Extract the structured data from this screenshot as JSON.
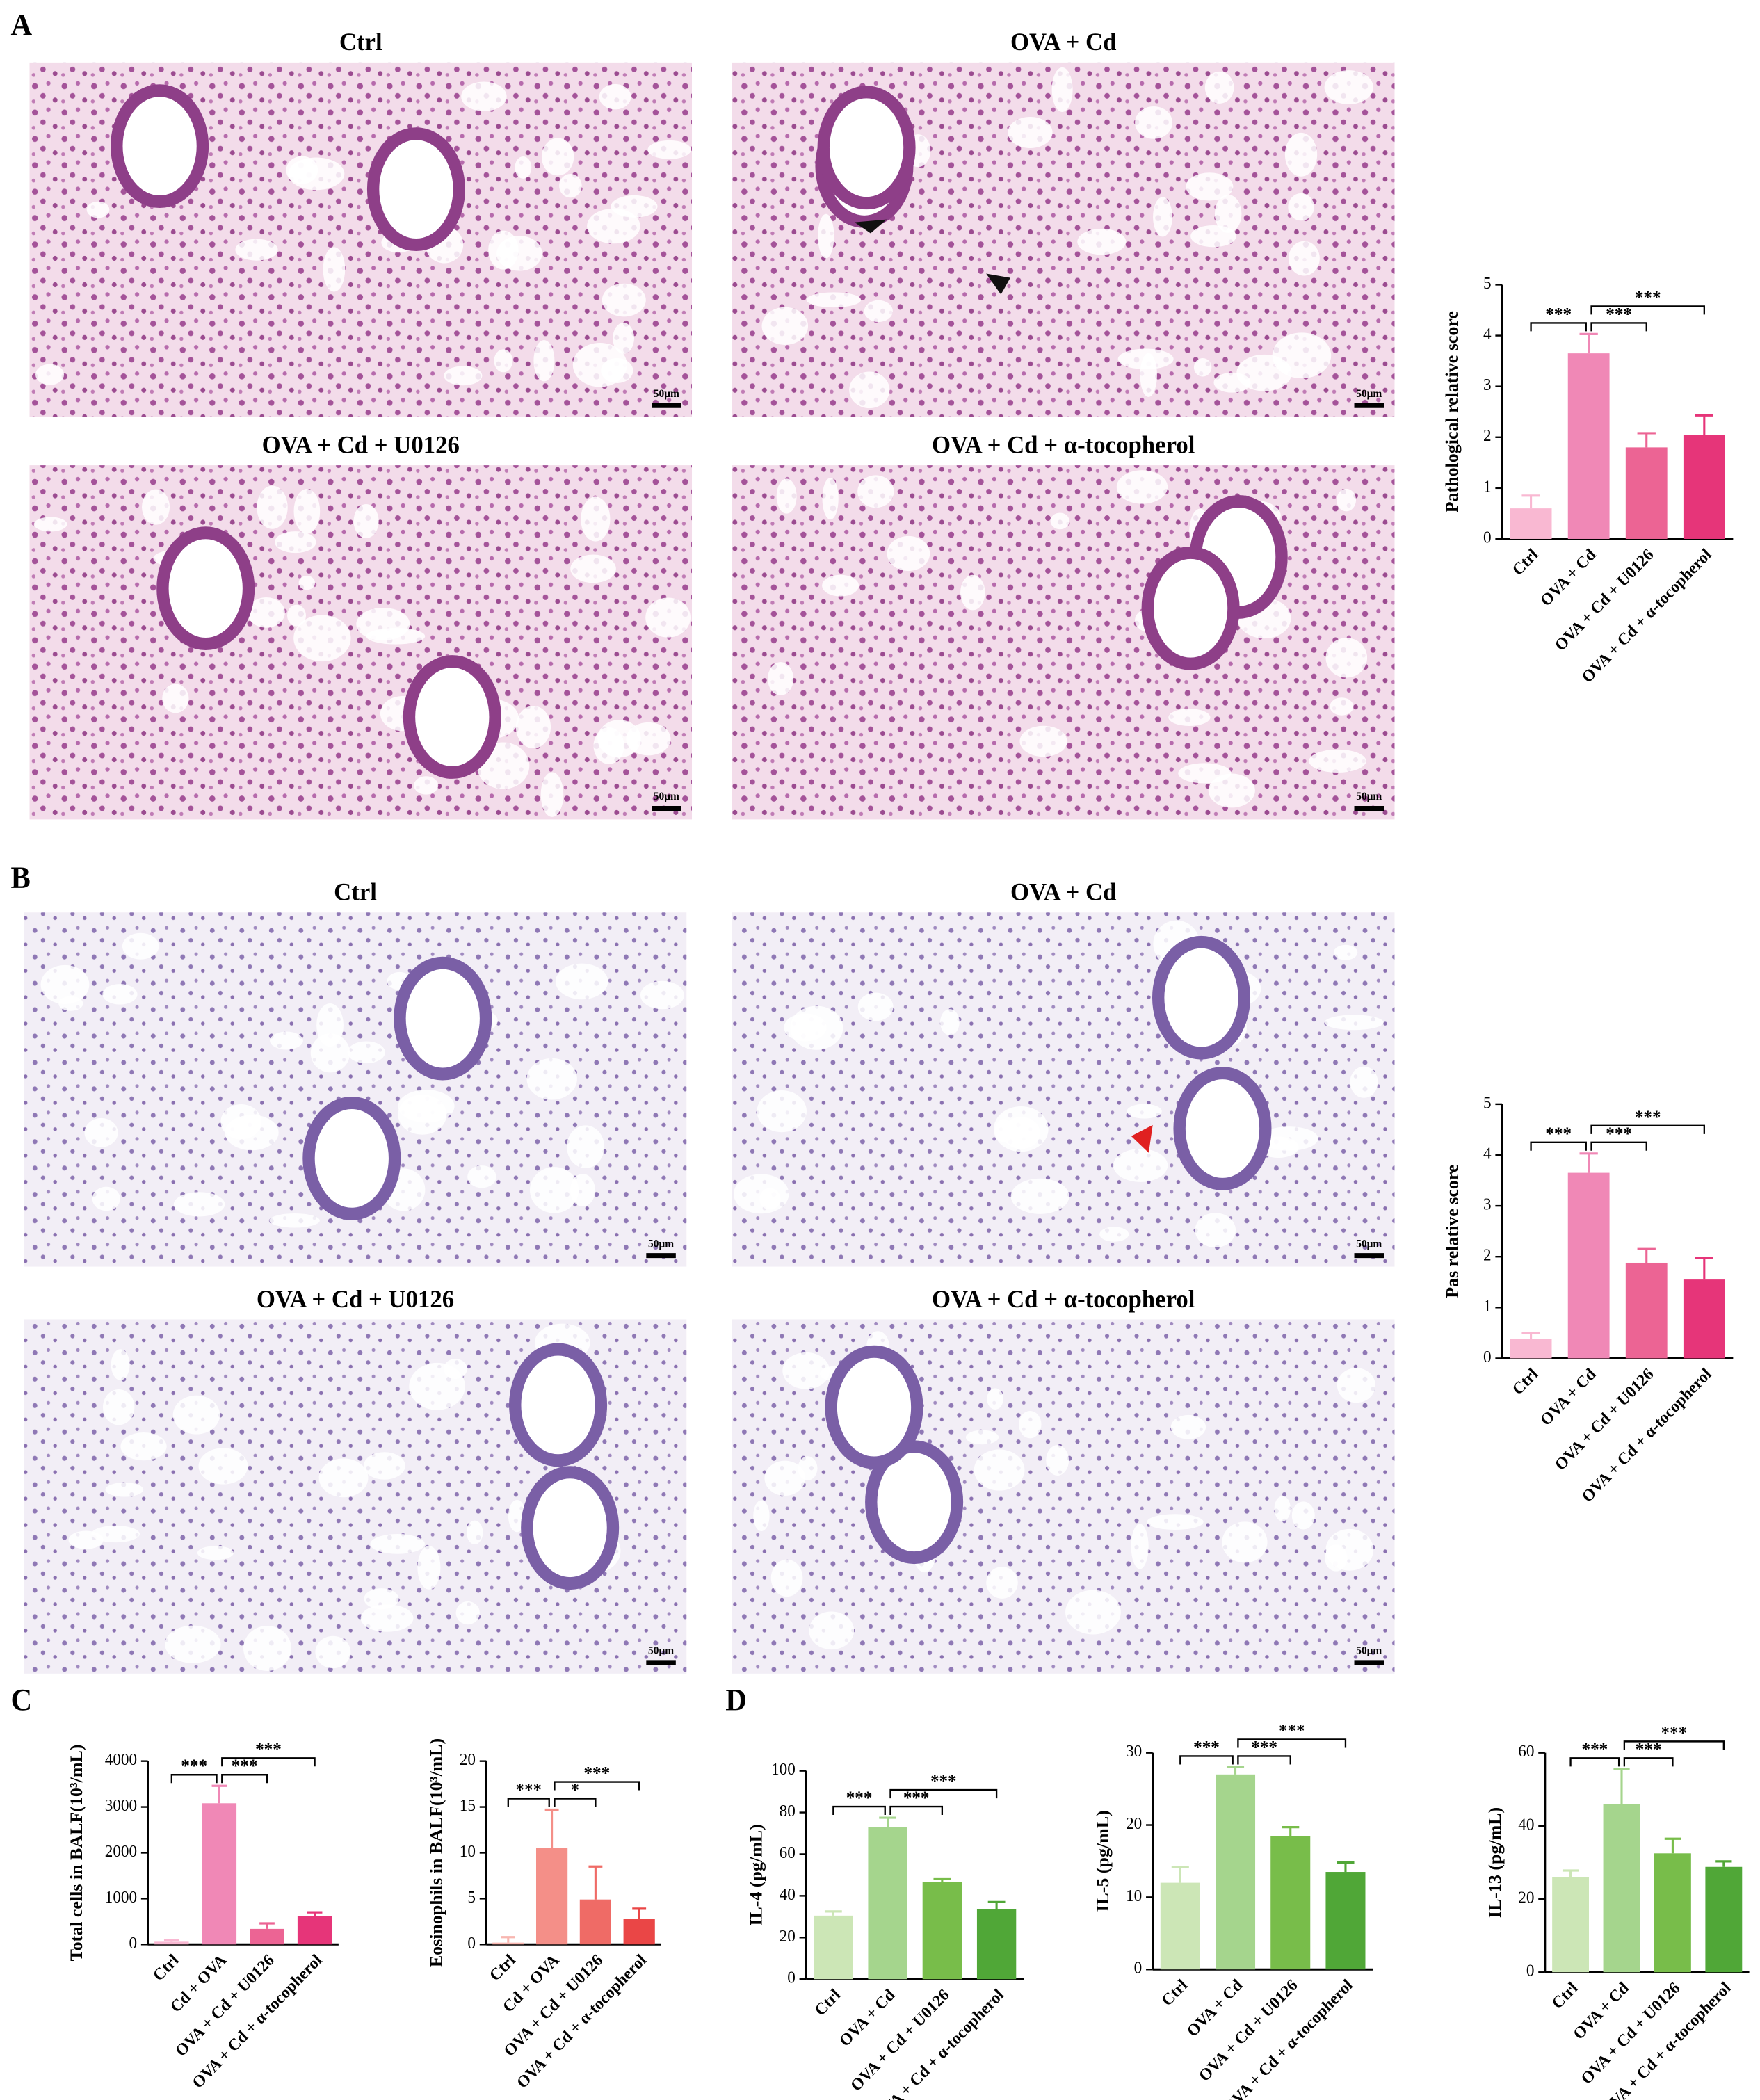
{
  "panel_labels": [
    "A",
    "B",
    "C",
    "D"
  ],
  "micrograph_panels": [
    {
      "titles": [
        "Ctrl",
        "OVA + Cd",
        "OVA + Cd + U0126",
        "OVA + Cd + α-tocopherol"
      ],
      "scale_bars": [
        "50μm",
        "50μm",
        "50μm",
        "50μm"
      ]
    },
    {
      "titles": [
        "Ctrl",
        "OVA + Cd",
        "OVA + Cd + U0126",
        "OVA + Cd + α-tocopherol"
      ],
      "scale_bars": [
        "50μm",
        "50μm",
        "50μm",
        "50μm"
      ]
    }
  ],
  "chart_data": [
    {
      "type": "bar",
      "ylabel": "Pathological relative score",
      "categories": [
        "Ctrl",
        "OVA + Cd",
        "OVA + Cd + U0126",
        "OVA + Cd + α-tocopherol"
      ],
      "values": [
        0.6,
        3.65,
        1.8,
        2.05
      ],
      "errors": [
        0.25,
        0.38,
        0.28,
        0.38
      ],
      "colors": [
        "#f9b8d2",
        "#f088b6",
        "#ec6494",
        "#e63579"
      ],
      "ylim": [
        0,
        5
      ],
      "yticks": [
        0,
        1,
        2,
        3,
        4,
        5
      ],
      "significance": [
        "***",
        "***",
        "***"
      ]
    },
    {
      "type": "bar",
      "ylabel": "Pas relative score",
      "categories": [
        "Ctrl",
        "OVA + Cd",
        "OVA + Cd + U0126",
        "OVA + Cd + α-tocopherol"
      ],
      "values": [
        0.38,
        3.65,
        1.88,
        1.55
      ],
      "errors": [
        0.12,
        0.38,
        0.27,
        0.42
      ],
      "colors": [
        "#f9b8d2",
        "#f088b6",
        "#ec6494",
        "#e63579"
      ],
      "ylim": [
        0,
        5
      ],
      "yticks": [
        0,
        1,
        2,
        3,
        4,
        5
      ],
      "significance": [
        "***",
        "***",
        "***"
      ]
    },
    {
      "type": "bar",
      "ylabel": "Total cells in BALF(10³/mL)",
      "categories": [
        "Ctrl",
        "Cd + OVA",
        "OVA + Cd + U0126",
        "OVA + Cd + α-tocopherol"
      ],
      "values": [
        60,
        3080,
        340,
        620
      ],
      "errors": [
        30,
        380,
        120,
        80
      ],
      "colors": [
        "#f9b8d2",
        "#f088b6",
        "#ec6494",
        "#e63579"
      ],
      "ylim": [
        0,
        4000
      ],
      "yticks": [
        0,
        1000,
        2000,
        3000,
        4000
      ],
      "significance": [
        "***",
        "***",
        "***"
      ]
    },
    {
      "type": "bar",
      "ylabel": "Eosinophils in BALF(10³/mL)",
      "categories": [
        "Ctrl",
        "Cd + OVA",
        "OVA + Cd + U0126",
        "OVA + Cd + α-tocopherol"
      ],
      "values": [
        0.2,
        10.5,
        4.9,
        2.8
      ],
      "errors": [
        0.6,
        4.2,
        3.6,
        1.1
      ],
      "colors": [
        "#f8b6b0",
        "#f48f88",
        "#ef6b66",
        "#ea4646"
      ],
      "ylim": [
        0,
        20
      ],
      "yticks": [
        0,
        5,
        10,
        15,
        20
      ],
      "significance": [
        "***",
        "*",
        "***"
      ]
    },
    {
      "type": "bar",
      "ylabel": "IL-4 (pg/mL)",
      "categories": [
        "Ctrl",
        "OVA + Cd",
        "OVA + Cd + U0126",
        "OVA + Cd + α-tocopherol"
      ],
      "values": [
        30.5,
        73,
        46.5,
        33.5
      ],
      "errors": [
        2,
        4.5,
        1.5,
        3.5
      ],
      "colors": [
        "#cce6b6",
        "#a5d58d",
        "#78bd4a",
        "#50a737"
      ],
      "ylim": [
        0,
        100
      ],
      "yticks": [
        0,
        20,
        40,
        60,
        80,
        100
      ],
      "significance": [
        "***",
        "***",
        "***"
      ]
    },
    {
      "type": "bar",
      "ylabel": "IL-5 (pg/mL)",
      "categories": [
        "Ctrl",
        "OVA + Cd",
        "OVA + Cd + U0126",
        "OVA + Cd + α-tocopherol"
      ],
      "values": [
        12,
        27,
        18.5,
        13.5
      ],
      "errors": [
        2.2,
        1,
        1.2,
        1.3
      ],
      "colors": [
        "#cce6b6",
        "#a5d58d",
        "#78bd4a",
        "#50a737"
      ],
      "ylim": [
        0,
        30
      ],
      "yticks": [
        0,
        10,
        20,
        30
      ],
      "significance": [
        "***",
        "***",
        "***"
      ]
    },
    {
      "type": "bar",
      "ylabel": "IL-13 (pg/mL)",
      "categories": [
        "Ctrl",
        "OVA + Cd",
        "OVA + Cd + U0126",
        "OVA + Cd + α-tocopherol"
      ],
      "values": [
        26,
        46,
        32.5,
        28.8
      ],
      "errors": [
        1.8,
        9.5,
        4,
        1.5
      ],
      "colors": [
        "#cce6b6",
        "#a5d58d",
        "#78bd4a",
        "#50a737"
      ],
      "ylim": [
        0,
        60
      ],
      "yticks": [
        0,
        20,
        40,
        60
      ],
      "significance": [
        "***",
        "***",
        "***"
      ]
    }
  ]
}
